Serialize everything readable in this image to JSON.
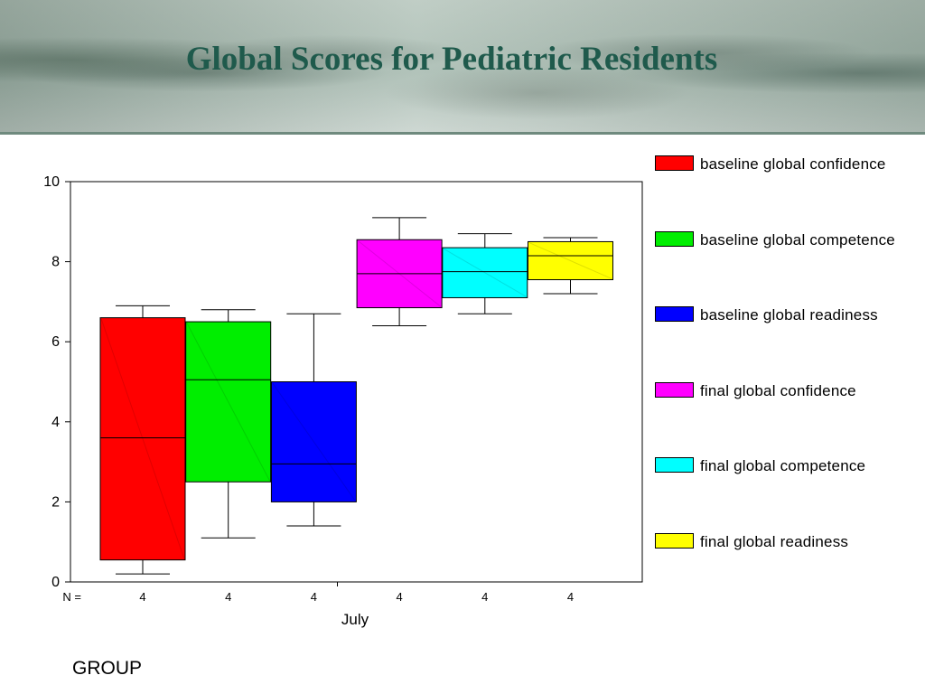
{
  "slide": {
    "title": "Global Scores for Pediatric Residents",
    "footer_label": "GROUP"
  },
  "chart_data": {
    "type": "boxplot",
    "x_label": "July",
    "n_prefix": "N =",
    "y_ticks": [
      0,
      2,
      4,
      6,
      8,
      10
    ],
    "ylim": [
      0,
      10
    ],
    "grid": false,
    "legend_position": "right",
    "series": [
      {
        "name": "baseline global confidence",
        "color": "#ff0000",
        "n": 4,
        "whisker_low": 0.2,
        "q1": 0.55,
        "median": 3.6,
        "q3": 6.6,
        "whisker_high": 6.9
      },
      {
        "name": "baseline global competence",
        "color": "#00ee00",
        "n": 4,
        "whisker_low": 1.1,
        "q1": 2.5,
        "median": 5.05,
        "q3": 6.5,
        "whisker_high": 6.8
      },
      {
        "name": "baseline global readiness",
        "color": "#0000ff",
        "n": 4,
        "whisker_low": 1.4,
        "q1": 2.0,
        "median": 2.95,
        "q3": 5.0,
        "whisker_high": 6.7
      },
      {
        "name": "final global confidence",
        "color": "#ff00ff",
        "n": 4,
        "whisker_low": 6.4,
        "q1": 6.85,
        "median": 7.7,
        "q3": 8.55,
        "whisker_high": 9.1
      },
      {
        "name": "final global competence",
        "color": "#00ffff",
        "n": 4,
        "whisker_low": 6.7,
        "q1": 7.1,
        "median": 7.75,
        "q3": 8.35,
        "whisker_high": 8.7
      },
      {
        "name": "final global readiness",
        "color": "#ffff00",
        "n": 4,
        "whisker_low": 7.2,
        "q1": 7.55,
        "median": 8.15,
        "q3": 8.5,
        "whisker_high": 8.6
      }
    ]
  }
}
